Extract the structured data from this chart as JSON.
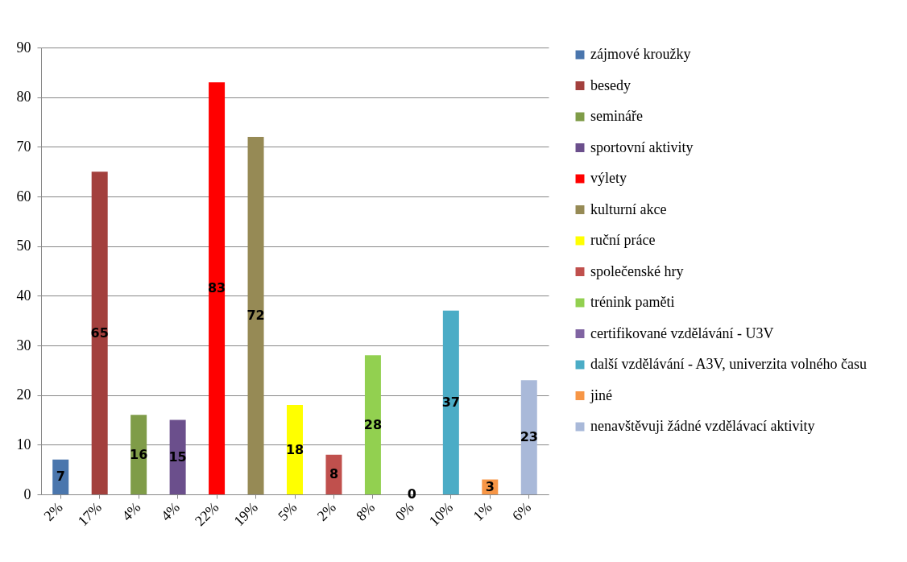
{
  "chart_data": {
    "type": "bar",
    "categories": [
      "2%",
      "17%",
      "4%",
      "4%",
      "22%",
      "19%",
      "5%",
      "2%",
      "8%",
      "0%",
      "10%",
      "1%",
      "6%"
    ],
    "series": [
      {
        "name": "zájmové kroužky",
        "color": "#4a76ad",
        "values": [
          7,
          null,
          null,
          null,
          null,
          null,
          null,
          null,
          null,
          null,
          null,
          null,
          null
        ]
      },
      {
        "name": "besedy",
        "color": "#a3403d",
        "values": [
          null,
          65,
          null,
          null,
          null,
          null,
          null,
          null,
          null,
          null,
          null,
          null,
          null
        ]
      },
      {
        "name": "semináře",
        "color": "#7f9c48",
        "values": [
          null,
          null,
          16,
          null,
          null,
          null,
          null,
          null,
          null,
          null,
          null,
          null,
          null
        ]
      },
      {
        "name": "sportovní aktivity",
        "color": "#6b4f8c",
        "values": [
          null,
          null,
          null,
          15,
          null,
          null,
          null,
          null,
          null,
          null,
          null,
          null,
          null
        ]
      },
      {
        "name": "výlety",
        "color": "#ff0000",
        "values": [
          null,
          null,
          null,
          null,
          83,
          null,
          null,
          null,
          null,
          null,
          null,
          null,
          null
        ]
      },
      {
        "name": "kulturní akce",
        "color": "#968a55",
        "values": [
          null,
          null,
          null,
          null,
          null,
          72,
          null,
          null,
          null,
          null,
          null,
          null,
          null
        ]
      },
      {
        "name": "ruční práce",
        "color": "#ffff00",
        "values": [
          null,
          null,
          null,
          null,
          null,
          null,
          18,
          null,
          null,
          null,
          null,
          null,
          null
        ]
      },
      {
        "name": "společenské hry",
        "color": "#c0504d",
        "values": [
          null,
          null,
          null,
          null,
          null,
          null,
          null,
          8,
          null,
          null,
          null,
          null,
          null
        ]
      },
      {
        "name": "trénink paměti",
        "color": "#92d050",
        "values": [
          null,
          null,
          null,
          null,
          null,
          null,
          null,
          null,
          28,
          null,
          null,
          null,
          null
        ]
      },
      {
        "name": "certifikované vzdělávání - U3V",
        "color": "#8064a2",
        "values": [
          null,
          null,
          null,
          null,
          null,
          null,
          null,
          null,
          null,
          0,
          null,
          null,
          null
        ]
      },
      {
        "name": "další vzdělávání - A3V, univerzita volného času",
        "color": "#4bacc6",
        "values": [
          null,
          null,
          null,
          null,
          null,
          null,
          null,
          null,
          null,
          null,
          37,
          null,
          null
        ]
      },
      {
        "name": "jiné",
        "color": "#f79646",
        "values": [
          null,
          null,
          null,
          null,
          null,
          null,
          null,
          null,
          null,
          null,
          null,
          3,
          null
        ]
      },
      {
        "name": "nenavštěvuji žádné vzdělávací aktivity",
        "color": "#a9b9d9",
        "values": [
          null,
          null,
          null,
          null,
          null,
          null,
          null,
          null,
          null,
          null,
          null,
          null,
          23
        ]
      }
    ],
    "ylim": [
      0,
      90
    ],
    "yticks": [
      0,
      10,
      20,
      30,
      40,
      50,
      60,
      70,
      80,
      90
    ],
    "grid": "y",
    "legend": "right",
    "data_labels": true
  }
}
